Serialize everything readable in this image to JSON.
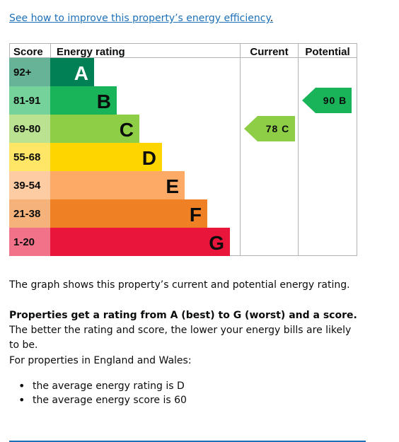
{
  "link": {
    "text": "See how to improve this property’s energy efficiency",
    "trail": "."
  },
  "table": {
    "headers": {
      "score": "Score",
      "rating": "Energy rating",
      "current": "Current",
      "potential": "Potential"
    },
    "bands": [
      {
        "score": "92+",
        "letter": "A",
        "color": "#008054",
        "score_bg": "#66b398"
      },
      {
        "score": "81-91",
        "letter": "B",
        "color": "#19b459",
        "score_bg": "#75d29b"
      },
      {
        "score": "69-80",
        "letter": "C",
        "color": "#8dce46",
        "score_bg": "#bbe290"
      },
      {
        "score": "55-68",
        "letter": "D",
        "color": "#ffd500",
        "score_bg": "#ffe666"
      },
      {
        "score": "39-54",
        "letter": "E",
        "color": "#fcaa65",
        "score_bg": "#fdcca3"
      },
      {
        "score": "21-38",
        "letter": "F",
        "color": "#ef8023",
        "score_bg": "#f5b37b"
      },
      {
        "score": "1-20",
        "letter": "G",
        "color": "#e9153b",
        "score_bg": "#f27389"
      }
    ],
    "current": {
      "label": "78 C",
      "band": "C",
      "color": "#8dce46"
    },
    "potential": {
      "label": "90 B",
      "band": "B",
      "color": "#19b459"
    }
  },
  "text": {
    "p1": "The graph shows this property’s current and potential energy rating.",
    "p2_bold": "Properties get a rating from A (best) to G (worst) and a score.",
    "p2_rest": " The better the rating and score, the lower your energy bills are likely to be.",
    "p3": "For properties in England and Wales:",
    "bullets": [
      "the average energy rating is D",
      "the average energy score is 60"
    ]
  }
}
